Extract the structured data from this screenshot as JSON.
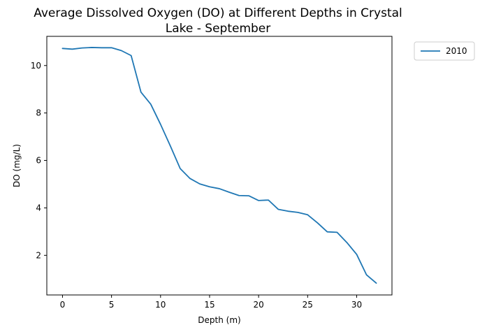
{
  "chart_data": {
    "type": "line",
    "title_line1": "Average Dissolved Oxygen (DO) at Different Depths in Crystal",
    "title_line2": "Lake - September",
    "xlabel": "Depth (m)",
    "ylabel": "DO (mg/L)",
    "xlim": [
      -1.6,
      33.6
    ],
    "ylim": [
      0.33,
      11.23
    ],
    "xticks": [
      0,
      5,
      10,
      15,
      20,
      25,
      30
    ],
    "yticks": [
      2,
      4,
      6,
      8,
      10
    ],
    "grid": false,
    "legend_position": "outside-top-right",
    "series": [
      {
        "name": "2010",
        "color": "#1f77b4",
        "x": [
          0,
          1,
          2,
          3,
          4,
          5,
          6,
          7,
          8,
          9,
          10,
          11,
          12,
          13,
          14,
          15,
          16,
          17,
          18,
          19,
          20,
          21,
          22,
          23,
          24,
          25,
          26,
          27,
          28,
          29,
          30,
          31,
          32
        ],
        "y": [
          10.72,
          10.69,
          10.74,
          10.76,
          10.75,
          10.75,
          10.63,
          10.42,
          8.88,
          8.37,
          7.52,
          6.61,
          5.66,
          5.24,
          5.01,
          4.89,
          4.81,
          4.66,
          4.52,
          4.51,
          4.31,
          4.33,
          3.94,
          3.86,
          3.81,
          3.71,
          3.37,
          2.99,
          2.97,
          2.54,
          2.04,
          1.18,
          0.83
        ]
      }
    ]
  }
}
